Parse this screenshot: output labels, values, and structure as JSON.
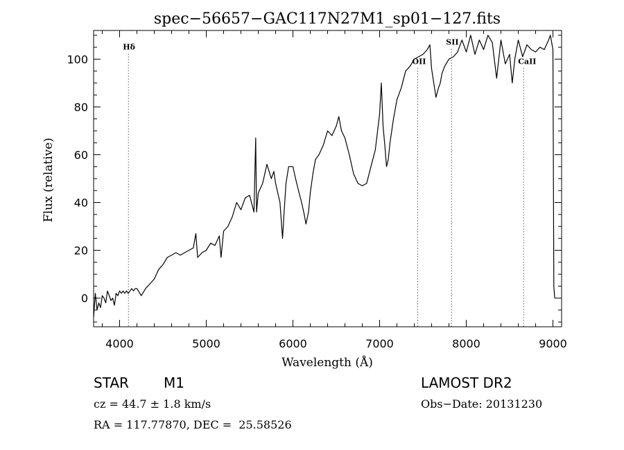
{
  "chart_data": {
    "type": "line",
    "title": "spec−56657−GAC117N27M1_sp01−127.fits",
    "xlabel": "Wavelength (Å)",
    "ylabel": "Flux (relative)",
    "xlim": [
      3700,
      9100
    ],
    "ylim": [
      -12,
      112
    ],
    "xticks": [
      4000,
      5000,
      6000,
      7000,
      8000,
      9000
    ],
    "yticks": [
      0,
      20,
      40,
      60,
      80,
      100
    ],
    "grid": false,
    "series": [
      {
        "values_note": "",
        "x": [
          3700,
          3720,
          3740,
          3760,
          3780,
          3800,
          3820,
          3840,
          3860,
          3880,
          3900,
          3920,
          3940,
          3960,
          3980,
          4000,
          4020,
          4040,
          4060,
          4080,
          4100,
          4120,
          4140,
          4160,
          4180,
          4200,
          4250,
          4300,
          4350,
          4400,
          4450,
          4500,
          4550,
          4600,
          4650,
          4700,
          4750,
          4800,
          4850,
          4880,
          4900,
          4950,
          5000,
          5050,
          5100,
          5150,
          5170,
          5200,
          5250,
          5300,
          5350,
          5400,
          5450,
          5500,
          5550,
          5570,
          5580,
          5600,
          5650,
          5700,
          5750,
          5780,
          5800,
          5850,
          5880,
          5900,
          5920,
          5950,
          6000,
          6030,
          6050,
          6100,
          6130,
          6150,
          6180,
          6200,
          6230,
          6260,
          6300,
          6350,
          6400,
          6450,
          6500,
          6530,
          6560,
          6600,
          6650,
          6700,
          6750,
          6800,
          6850,
          6900,
          6950,
          7000,
          7020,
          7040,
          7060,
          7080,
          7100,
          7120,
          7140,
          7160,
          7200,
          7250,
          7300,
          7350,
          7400,
          7450,
          7500,
          7550,
          7580,
          7600,
          7650,
          7680,
          7700,
          7720,
          7750,
          7800,
          7850,
          7900,
          7950,
          8000,
          8050,
          8100,
          8150,
          8200,
          8250,
          8300,
          8350,
          8400,
          8450,
          8500,
          8530,
          8560,
          8600,
          8650,
          8700,
          8750,
          8800,
          8850,
          8900,
          8950,
          8970,
          9000,
          9010,
          9020
        ],
        "y": [
          -8,
          2,
          -5,
          -2,
          -4,
          1,
          0,
          -2,
          3,
          1,
          -1,
          0,
          -3,
          2,
          1,
          3,
          2,
          3,
          2,
          3,
          2,
          3,
          4,
          3,
          4,
          4,
          1,
          4,
          6,
          8,
          12,
          14,
          17,
          18,
          19,
          18,
          19,
          20,
          21,
          27,
          17,
          19,
          20,
          23,
          22,
          26,
          17,
          28,
          30,
          34,
          40,
          37,
          42,
          43,
          36,
          67,
          36,
          44,
          48,
          56,
          50,
          53,
          48,
          40,
          25,
          37,
          48,
          55,
          55,
          50,
          47,
          40,
          35,
          31,
          36,
          44,
          52,
          58,
          60,
          64,
          70,
          68,
          72,
          76,
          70,
          67,
          60,
          52,
          48,
          47,
          48,
          55,
          62,
          77,
          90,
          72,
          64,
          55,
          58,
          65,
          70,
          75,
          83,
          88,
          95,
          97,
          100,
          101,
          102,
          104,
          106,
          96,
          84,
          88,
          90,
          94,
          97,
          100,
          101,
          103,
          108,
          103,
          110,
          102,
          108,
          104,
          110,
          107,
          92,
          108,
          98,
          102,
          90,
          100,
          108,
          101,
          106,
          104,
          103,
          105,
          104,
          108,
          110,
          104,
          5,
          0
        ]
      }
    ],
    "annotations": [
      {
        "label": "Hδ",
        "x": 4102,
        "label_y": 104
      },
      {
        "label": "OII",
        "x": 7440,
        "label_y": 98
      },
      {
        "label": "SII",
        "x": 7830,
        "label_y": 106
      },
      {
        "label": "CaII",
        "x": 8662,
        "label_y": 98
      }
    ]
  },
  "info": {
    "object_class": "STAR",
    "subclass": "M1",
    "survey": "LAMOST DR2",
    "cz": "cz = 44.7 ± 1.8 km/s",
    "obs_date": "Obs−Date: 20131230",
    "coords": "RA = 117.77870, DEC =  25.58526"
  }
}
